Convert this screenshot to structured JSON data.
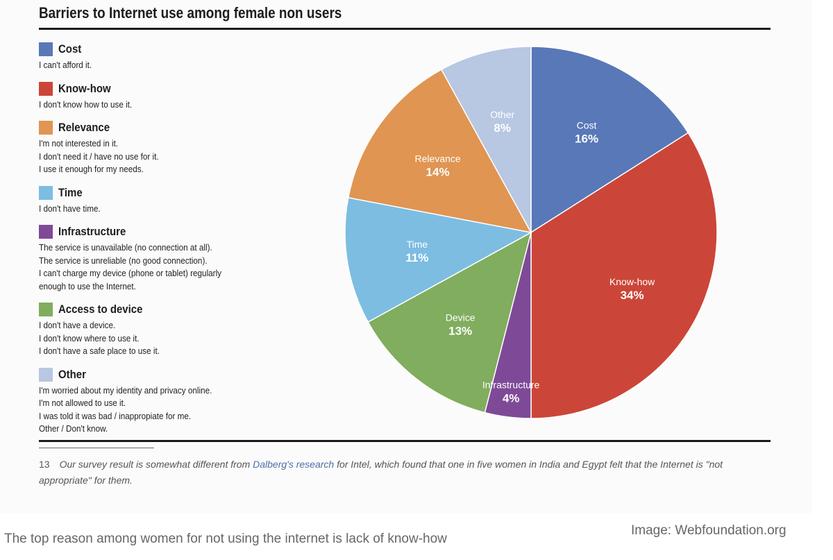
{
  "chart_data": {
    "type": "pie",
    "title": "Barriers to Internet use among female non users",
    "slices": [
      {
        "label": "Cost",
        "value": 16,
        "display": "16%",
        "color": "#5878b8"
      },
      {
        "label": "Know-how",
        "value": 34,
        "display": "34%",
        "color": "#cb4638"
      },
      {
        "label": "Infrastructure",
        "value": 4,
        "display": "4%",
        "color": "#7e4a97"
      },
      {
        "label": "Device",
        "value": 13,
        "display": "13%",
        "color": "#81ad5f"
      },
      {
        "label": "Time",
        "value": 11,
        "display": "11%",
        "color": "#7dbde2"
      },
      {
        "label": "Relevance",
        "value": 14,
        "display": "14%",
        "color": "#e09552"
      },
      {
        "label": "Other",
        "value": 8,
        "display": "8%",
        "color": "#b8c7e2"
      }
    ]
  },
  "legend": [
    {
      "name": "Cost",
      "color": "#5878b8",
      "lines": [
        "I can't afford it."
      ]
    },
    {
      "name": "Know-how",
      "color": "#cb4638",
      "lines": [
        "I don't know how to use it."
      ]
    },
    {
      "name": "Relevance",
      "color": "#e09552",
      "lines": [
        "I'm not interested in it.",
        "I don't need it / have no use for it.",
        "I use it enough for my needs."
      ]
    },
    {
      "name": "Time",
      "color": "#7dbde2",
      "lines": [
        "I don't have time."
      ]
    },
    {
      "name": "Infrastructure",
      "color": "#7e4a97",
      "lines": [
        "The service is unavailable (no connection at all).",
        "The service is unreliable (no good connection).",
        "I can't charge my device (phone or tablet) regularly",
        "enough to use the Internet."
      ]
    },
    {
      "name": "Access to device",
      "color": "#81ad5f",
      "lines": [
        "I don't have a device.",
        "I don't know where to use it.",
        "I don't have a safe place to use it."
      ]
    },
    {
      "name": "Other",
      "color": "#b8c7e2",
      "lines": [
        "I'm worried about my identity and privacy online.",
        "I'm not allowed to use it.",
        "I was told it was bad / inappropiate for me.",
        "Other / Don't know."
      ]
    }
  ],
  "footnote": {
    "number": "13",
    "text_before": "Our survey result is somewhat different from ",
    "link_text": "Dalberg's research",
    "text_after": " for Intel, which found that one in five women in India and Egypt felt that the Internet is \"not appropriate\" for them."
  },
  "caption": "The top reason among women for not using the internet is lack of know-how",
  "credit": "Image: Webfoundation.org"
}
